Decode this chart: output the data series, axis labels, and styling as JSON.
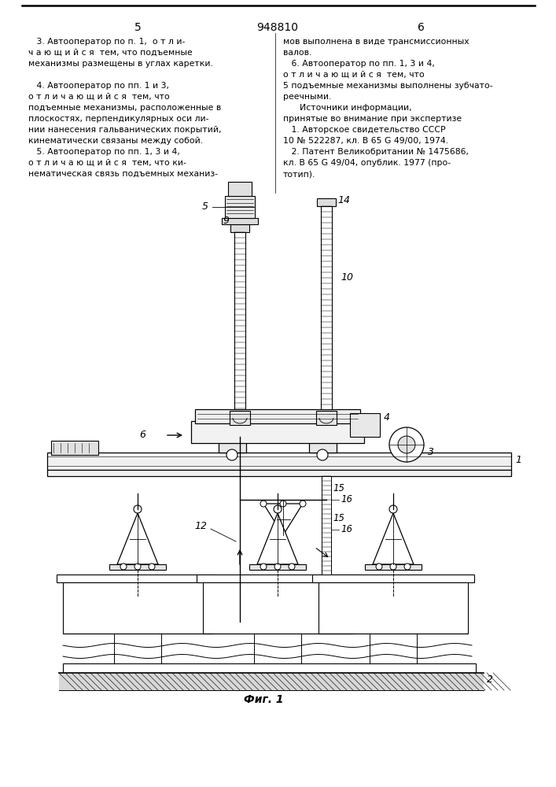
{
  "page_left_number": "5",
  "patent_number": "948810",
  "page_right_number": "6",
  "bg_color": "#ffffff",
  "text_color": "#000000",
  "left_col_lines": [
    "   3. Автооператор по п. 1,  о т л и-",
    "ч а ю щ и й с я  тем, что подъемные",
    "механизмы размещены в углах каретки.",
    "",
    "   4. Автооператор по пп. 1 и 3,",
    "о т л и ч а ю щ и й с я  тем, что",
    "подъемные механизмы, расположенные в",
    "плоскостях, перпендикулярных оси ли-",
    "нии нанесения гальванических покрытий,",
    "кинематически связаны между собой.",
    "   5. Автооператор по пп. 1, 3 и 4,",
    "о т л и ч а ю щ и й с я  тем, что ки-",
    "нематическая связь подъемных механиз-"
  ],
  "right_col_lines": [
    "мов выполнена в виде трансмиссионных",
    "валов.",
    "   6. Автооператор по пп. 1, 3 и 4,",
    "о т л и ч а ю щ и й с я  тем, что",
    "5 подъемные механизмы выполнены зубчато-",
    "реечными.",
    "      Источники информации,",
    "принятые во внимание при экспертизе",
    "   1. Авторское свидетельство СССР",
    "10 № 522287, кл. В 65 G 49/00, 1974.",
    "   2. Патент Великобритании № 1475686,",
    "кл. В 65 G 49/04, опублик. 1977 (про-",
    "тотип)."
  ],
  "fig_caption": "Фиг. 1"
}
